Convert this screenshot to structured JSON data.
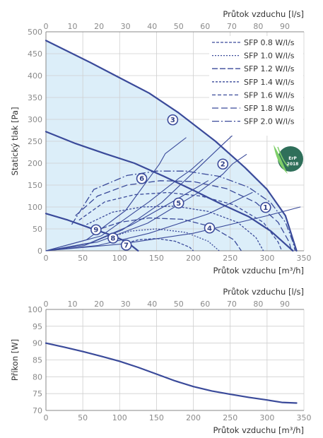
{
  "chart_data": [
    {
      "type": "line",
      "title": "",
      "xlabel": "Průtok vzduchu [m³/h]",
      "ylabel": "Statický tlak [Pa]",
      "x2label": "Průtok vzduchu [l/s]",
      "xlim": [
        0,
        350
      ],
      "ylim": [
        0,
        500
      ],
      "x2lim": [
        0,
        97.2
      ],
      "xticks": [
        "0",
        "50",
        "100",
        "150",
        "200",
        "250",
        "300",
        "350"
      ],
      "yticks": [
        "0",
        "50",
        "100",
        "150",
        "200",
        "250",
        "300",
        "350",
        "400",
        "450",
        "500"
      ],
      "x2ticks": [
        "0",
        "10",
        "20",
        "30",
        "40",
        "50",
        "60",
        "70",
        "80",
        "90"
      ],
      "grid": true,
      "colors": {
        "curve": "#3a4a9a",
        "fill": "#dceef9",
        "grid": "#cfcfcf",
        "badge": "#2f6f5a",
        "badge_leaf": "#7fcf6a"
      },
      "series": [
        {
          "points": [
            [
              0,
              480
            ],
            [
              30,
              455
            ],
            [
              60,
              430
            ],
            [
              100,
              395
            ],
            [
              140,
              360
            ],
            [
              180,
              315
            ],
            [
              230,
              250
            ],
            [
              270,
              190
            ],
            [
              300,
              140
            ],
            [
              325,
              80
            ],
            [
              340,
              0
            ]
          ]
        },
        {
          "points": [
            [
              0,
              272
            ],
            [
              40,
              245
            ],
            [
              80,
              222
            ],
            [
              120,
              200
            ],
            [
              160,
              170
            ],
            [
              200,
              138
            ],
            [
              240,
              105
            ],
            [
              275,
              78
            ],
            [
              305,
              45
            ],
            [
              325,
              15
            ],
            [
              335,
              0
            ]
          ]
        },
        {
          "points": [
            [
              0,
              85
            ],
            [
              30,
              70
            ],
            [
              60,
              52
            ],
            [
              90,
              35
            ],
            [
              110,
              20
            ],
            [
              125,
              0
            ]
          ]
        },
        {
          "points": [
            [
              0,
              0
            ],
            [
              52,
              12
            ],
            [
              104,
              48
            ],
            [
              157,
              110
            ],
            [
              207,
              190
            ],
            [
              240,
              243
            ],
            [
              254,
              265
            ],
            [
              277,
              301
            ]
          ]
        },
        {
          "points": [
            [
              0,
              0
            ],
            [
              70,
              20
            ],
            [
              138,
              63
            ],
            [
              205,
              131
            ],
            [
              240,
              175
            ],
            [
              253,
              198
            ],
            [
              272,
              220
            ]
          ]
        },
        {
          "points": [
            [
              0,
              0
            ],
            [
              55,
              25
            ],
            [
              108,
              92
            ],
            [
              154,
              198
            ],
            [
              162,
              222
            ],
            [
              190,
              258
            ]
          ]
        },
        {
          "points": [
            [
              0,
              0
            ],
            [
              75,
              34
            ],
            [
              140,
              112
            ],
            [
              180,
              165
            ],
            [
              197,
              185
            ],
            [
              213,
              209
            ]
          ]
        },
        {
          "points": [
            [
              0,
              0
            ],
            [
              60,
              18
            ],
            [
              115,
              58
            ],
            [
              180,
              120
            ],
            [
              220,
              160
            ]
          ]
        },
        {
          "points": [
            [
              0,
              0
            ],
            [
              70,
              12
            ],
            [
              140,
              40
            ],
            [
              220,
              84
            ],
            [
              280,
              133
            ]
          ]
        },
        {
          "points": [
            [
              0,
              0
            ],
            [
              100,
              15
            ],
            [
              200,
              40
            ],
            [
              300,
              80
            ],
            [
              345,
              100
            ]
          ]
        }
      ],
      "dashed_series": [
        {
          "name": "SFP 0.8 W/l/s",
          "dash": "4 2",
          "points": [
            [
              105,
              16
            ],
            [
              125,
              25
            ],
            [
              150,
              28
            ],
            [
              175,
              22
            ],
            [
              195,
              8
            ],
            [
              200,
              0
            ]
          ]
        },
        {
          "name": "SFP 1.0 W/l/s",
          "dash": "2 2",
          "points": [
            [
              85,
              30
            ],
            [
              115,
              45
            ],
            [
              150,
              50
            ],
            [
              190,
              42
            ],
            [
              220,
              22
            ],
            [
              235,
              0
            ]
          ]
        },
        {
          "name": "SFP 1.2 W/l/s",
          "dash": "8 3",
          "points": [
            [
              65,
              45
            ],
            [
              100,
              65
            ],
            [
              140,
              75
            ],
            [
              185,
              72
            ],
            [
              225,
              55
            ],
            [
              255,
              25
            ],
            [
              265,
              0
            ]
          ]
        },
        {
          "name": "SFP 1.4 W/l/s",
          "dash": "3 2",
          "points": [
            [
              55,
              60
            ],
            [
              90,
              88
            ],
            [
              130,
              100
            ],
            [
              175,
              102
            ],
            [
              220,
              90
            ],
            [
              260,
              65
            ],
            [
              285,
              30
            ],
            [
              295,
              0
            ]
          ]
        },
        {
          "name": "SFP 1.6 W/l/s",
          "dash": "5 3",
          "points": [
            [
              45,
              70
            ],
            [
              80,
              112
            ],
            [
              120,
              128
            ],
            [
              165,
              133
            ],
            [
              210,
              125
            ],
            [
              255,
              105
            ],
            [
              295,
              65
            ],
            [
              315,
              20
            ],
            [
              320,
              0
            ]
          ]
        },
        {
          "name": "SFP 1.8 W/l/s",
          "dash": "9 4",
          "points": [
            [
              40,
              80
            ],
            [
              70,
              125
            ],
            [
              110,
              150
            ],
            [
              155,
              160
            ],
            [
              200,
              158
            ],
            [
              245,
              142
            ],
            [
              285,
              110
            ],
            [
              315,
              65
            ],
            [
              330,
              20
            ],
            [
              333,
              0
            ]
          ]
        },
        {
          "name": "SFP 2.0 W/l/s",
          "dash": "10 3 2 3",
          "points": [
            [
              35,
              60
            ],
            [
              65,
              140
            ],
            [
              110,
              172
            ],
            [
              150,
              182
            ],
            [
              190,
              182
            ],
            [
              235,
              170
            ],
            [
              275,
              145
            ],
            [
              305,
              110
            ],
            [
              325,
              65
            ],
            [
              335,
              20
            ],
            [
              338,
              0
            ]
          ]
        }
      ],
      "markers": [
        {
          "label": "1",
          "x": 298,
          "y": 99
        },
        {
          "label": "2",
          "x": 240,
          "y": 198
        },
        {
          "label": "3",
          "x": 172,
          "y": 299
        },
        {
          "label": "4",
          "x": 222,
          "y": 52
        },
        {
          "label": "5",
          "x": 180,
          "y": 109
        },
        {
          "label": "6",
          "x": 130,
          "y": 165
        },
        {
          "label": "7",
          "x": 109,
          "y": 13
        },
        {
          "label": "8",
          "x": 91,
          "y": 29
        },
        {
          "label": "9",
          "x": 68,
          "y": 48
        }
      ],
      "badge": {
        "line1": "ErP",
        "line2": "2018"
      }
    },
    {
      "type": "line",
      "title": "",
      "xlabel": "Průtok vzduchu [m³/h]",
      "ylabel": "Příkon [W]",
      "x2label": "Průtok vzduchu [l/s]",
      "xlim": [
        0,
        350
      ],
      "ylim": [
        70,
        100
      ],
      "x2lim": [
        0,
        97.2
      ],
      "xticks": [
        "0",
        "50",
        "100",
        "150",
        "200",
        "250",
        "300",
        "350"
      ],
      "yticks": [
        "70",
        "75",
        "80",
        "85",
        "90",
        "95",
        "100"
      ],
      "x2ticks": [
        "0",
        "10",
        "20",
        "30",
        "40",
        "50",
        "60",
        "70",
        "80",
        "90"
      ],
      "grid": true,
      "series": [
        {
          "points": [
            [
              0,
              90
            ],
            [
              25,
              88.8
            ],
            [
              50,
              87.5
            ],
            [
              75,
              86.1
            ],
            [
              100,
              84.6
            ],
            [
              125,
              82.8
            ],
            [
              150,
              80.8
            ],
            [
              175,
              78.8
            ],
            [
              200,
              77.1
            ],
            [
              225,
              75.8
            ],
            [
              250,
              74.8
            ],
            [
              275,
              73.9
            ],
            [
              300,
              73.1
            ],
            [
              320,
              72.4
            ],
            [
              340,
              72.2
            ]
          ]
        }
      ]
    }
  ]
}
